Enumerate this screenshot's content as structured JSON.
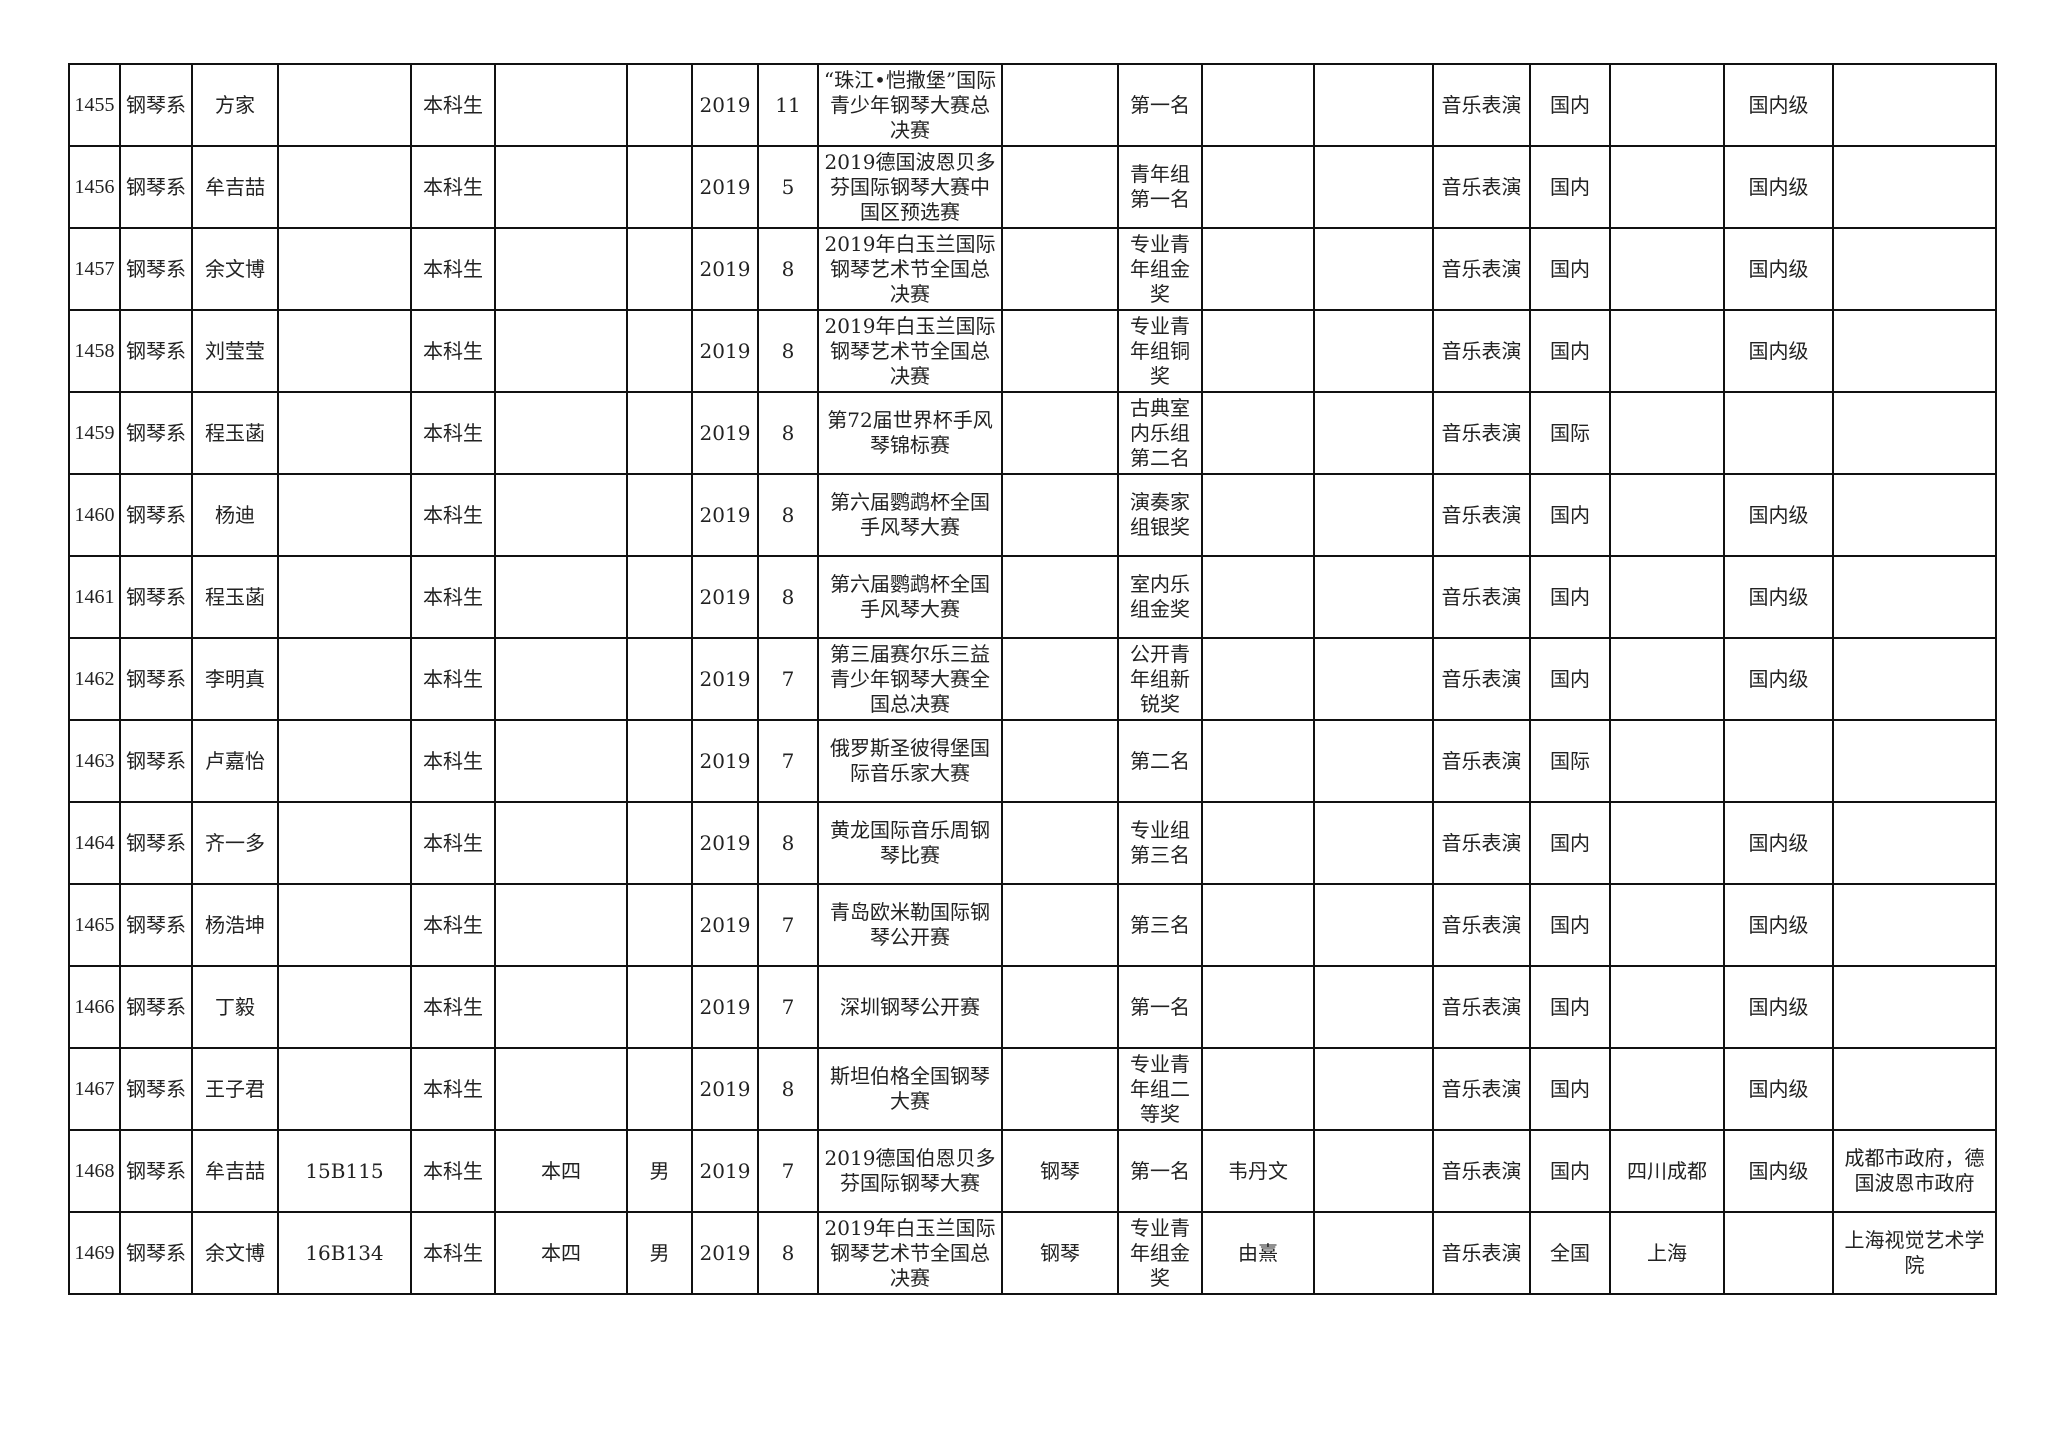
{
  "rows": [
    [
      "1455",
      "钢琴系",
      "方家",
      "",
      "本科生",
      "",
      "",
      "2019",
      "11",
      "“珠江•恺撒堡”国际青少年钢琴大赛总决赛",
      "",
      "第一名",
      "",
      "",
      "音乐表演",
      "国内",
      "",
      "国内级",
      ""
    ],
    [
      "1456",
      "钢琴系",
      "牟吉喆",
      "",
      "本科生",
      "",
      "",
      "2019",
      "5",
      "2019德国波恩贝多芬国际钢琴大赛中国区预选赛",
      "",
      "青年组第一名",
      "",
      "",
      "音乐表演",
      "国内",
      "",
      "国内级",
      ""
    ],
    [
      "1457",
      "钢琴系",
      "余文博",
      "",
      "本科生",
      "",
      "",
      "2019",
      "8",
      "2019年白玉兰国际钢琴艺术节全国总决赛",
      "",
      "专业青年组金奖",
      "",
      "",
      "音乐表演",
      "国内",
      "",
      "国内级",
      ""
    ],
    [
      "1458",
      "钢琴系",
      "刘莹莹",
      "",
      "本科生",
      "",
      "",
      "2019",
      "8",
      "2019年白玉兰国际钢琴艺术节全国总决赛",
      "",
      "专业青年组铜奖",
      "",
      "",
      "音乐表演",
      "国内",
      "",
      "国内级",
      ""
    ],
    [
      "1459",
      "钢琴系",
      "程玉菡",
      "",
      "本科生",
      "",
      "",
      "2019",
      "8",
      "第72届世界杯手风琴锦标赛",
      "",
      "古典室内乐组第二名",
      "",
      "",
      "音乐表演",
      "国际",
      "",
      "",
      ""
    ],
    [
      "1460",
      "钢琴系",
      "杨迪",
      "",
      "本科生",
      "",
      "",
      "2019",
      "8",
      "第六届鹦鹉杯全国手风琴大赛",
      "",
      "演奏家组银奖",
      "",
      "",
      "音乐表演",
      "国内",
      "",
      "国内级",
      ""
    ],
    [
      "1461",
      "钢琴系",
      "程玉菡",
      "",
      "本科生",
      "",
      "",
      "2019",
      "8",
      "第六届鹦鹉杯全国手风琴大赛",
      "",
      "室内乐组金奖",
      "",
      "",
      "音乐表演",
      "国内",
      "",
      "国内级",
      ""
    ],
    [
      "1462",
      "钢琴系",
      "李明真",
      "",
      "本科生",
      "",
      "",
      "2019",
      "7",
      "第三届赛尔乐三益青少年钢琴大赛全国总决赛",
      "",
      "公开青年组新锐奖",
      "",
      "",
      "音乐表演",
      "国内",
      "",
      "国内级",
      ""
    ],
    [
      "1463",
      "钢琴系",
      "卢嘉怡",
      "",
      "本科生",
      "",
      "",
      "2019",
      "7",
      "俄罗斯圣彼得堡国际音乐家大赛",
      "",
      "第二名",
      "",
      "",
      "音乐表演",
      "国际",
      "",
      "",
      ""
    ],
    [
      "1464",
      "钢琴系",
      "齐一多",
      "",
      "本科生",
      "",
      "",
      "2019",
      "8",
      "黄龙国际音乐周钢琴比赛",
      "",
      "专业组第三名",
      "",
      "",
      "音乐表演",
      "国内",
      "",
      "国内级",
      ""
    ],
    [
      "1465",
      "钢琴系",
      "杨浩坤",
      "",
      "本科生",
      "",
      "",
      "2019",
      "7",
      "青岛欧米勒国际钢琴公开赛",
      "",
      "第三名",
      "",
      "",
      "音乐表演",
      "国内",
      "",
      "国内级",
      ""
    ],
    [
      "1466",
      "钢琴系",
      "丁毅",
      "",
      "本科生",
      "",
      "",
      "2019",
      "7",
      "深圳钢琴公开赛",
      "",
      "第一名",
      "",
      "",
      "音乐表演",
      "国内",
      "",
      "国内级",
      ""
    ],
    [
      "1467",
      "钢琴系",
      "王子君",
      "",
      "本科生",
      "",
      "",
      "2019",
      "8",
      "斯坦伯格全国钢琴大赛",
      "",
      "专业青年组二等奖",
      "",
      "",
      "音乐表演",
      "国内",
      "",
      "国内级",
      ""
    ],
    [
      "1468",
      "钢琴系",
      "牟吉喆",
      "15B115",
      "本科生",
      "本四",
      "男",
      "2019",
      "7",
      "2019德国伯恩贝多芬国际钢琴大赛",
      "钢琴",
      "第一名",
      "韦丹文",
      "",
      "音乐表演",
      "国内",
      "四川成都",
      "国内级",
      "成都市政府，德国波恩市政府"
    ],
    [
      "1469",
      "钢琴系",
      "余文博",
      "16B134",
      "本科生",
      "本四",
      "男",
      "2019",
      "8",
      "2019年白玉兰国际钢琴艺术节全国总决赛",
      "钢琴",
      "专业青年组金奖",
      "由熹",
      "",
      "音乐表演",
      "全国",
      "上海",
      "",
      "上海视觉艺术学院"
    ]
  ]
}
